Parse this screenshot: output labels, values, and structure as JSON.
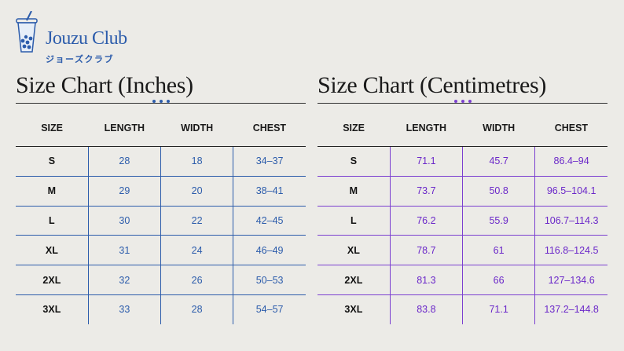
{
  "brand": {
    "name": "Jouzu Club",
    "name_jp": "ジョーズクラブ",
    "color": "#2c5cab"
  },
  "inches": {
    "title": "Size Chart (Inches)",
    "accent": "#2c5cab",
    "headers": [
      "SIZE",
      "LENGTH",
      "WIDTH",
      "CHEST"
    ],
    "rows": [
      [
        "S",
        "28",
        "18",
        "34–37"
      ],
      [
        "M",
        "29",
        "20",
        "38–41"
      ],
      [
        "L",
        "30",
        "22",
        "42–45"
      ],
      [
        "XL",
        "31",
        "24",
        "46–49"
      ],
      [
        "2XL",
        "32",
        "26",
        "50–53"
      ],
      [
        "3XL",
        "33",
        "28",
        "54–57"
      ]
    ]
  },
  "centimetres": {
    "title": "Size Chart (Centimetres)",
    "accent": "#7b3fd0",
    "headers": [
      "SIZE",
      "LENGTH",
      "WIDTH",
      "CHEST"
    ],
    "rows": [
      [
        "S",
        "71.1",
        "45.7",
        "86.4–94"
      ],
      [
        "M",
        "73.7",
        "50.8",
        "96.5–104.1"
      ],
      [
        "L",
        "76.2",
        "55.9",
        "106.7–114.3"
      ],
      [
        "XL",
        "78.7",
        "61",
        "116.8–124.5"
      ],
      [
        "2XL",
        "81.3",
        "66",
        "127–134.6"
      ],
      [
        "3XL",
        "83.8",
        "71.1",
        "137.2–144.8"
      ]
    ]
  }
}
